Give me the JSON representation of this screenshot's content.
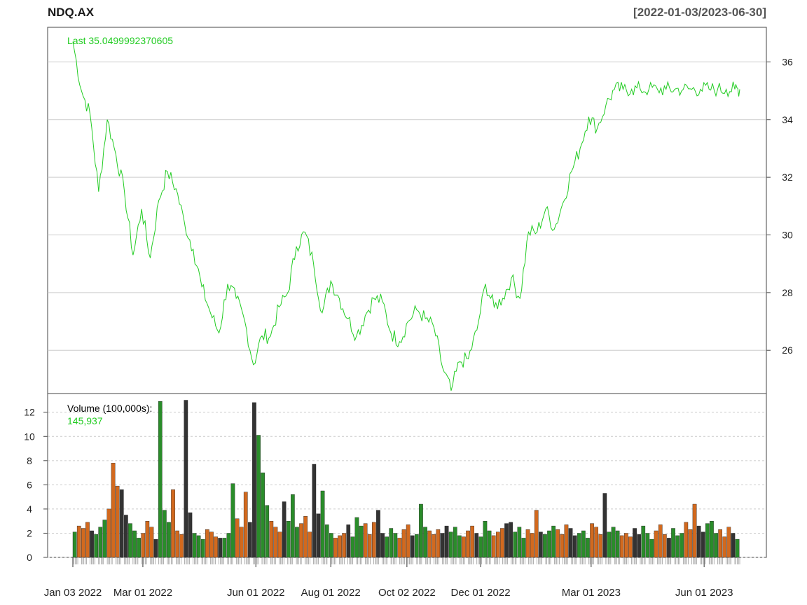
{
  "chart_data": {
    "type": "line",
    "symbol": "NDQ.AX",
    "date_range": "[2022-01-03/2023-06-30]",
    "last_label": "Last 35.0499992370605",
    "price_ylim": [
      24.5,
      37.2
    ],
    "price_ticks": [
      "26",
      "28",
      "30",
      "32",
      "34",
      "36"
    ],
    "x_tick_labels": [
      "Jan 03 2022",
      "Mar 01 2022",
      "Jun 01 2022",
      "Aug 01 2022",
      "Oct 02 2022",
      "Dec 01 2022",
      "Mar 01 2023",
      "Jun 01 2023"
    ],
    "price": {
      "x": [
        "2022-01-03",
        "2022-01-10",
        "2022-01-17",
        "2022-01-24",
        "2022-01-31",
        "2022-02-07",
        "2022-02-14",
        "2022-02-21",
        "2022-02-28",
        "2022-03-07",
        "2022-03-14",
        "2022-03-21",
        "2022-03-28",
        "2022-04-04",
        "2022-04-11",
        "2022-04-18",
        "2022-04-25",
        "2022-05-02",
        "2022-05-09",
        "2022-05-16",
        "2022-05-23",
        "2022-05-30",
        "2022-06-06",
        "2022-06-13",
        "2022-06-20",
        "2022-06-27",
        "2022-07-04",
        "2022-07-11",
        "2022-07-18",
        "2022-07-25",
        "2022-08-01",
        "2022-08-08",
        "2022-08-15",
        "2022-08-22",
        "2022-08-29",
        "2022-09-05",
        "2022-09-12",
        "2022-09-19",
        "2022-09-26",
        "2022-10-03",
        "2022-10-10",
        "2022-10-17",
        "2022-10-24",
        "2022-10-31",
        "2022-11-07",
        "2022-11-14",
        "2022-11-21",
        "2022-11-28",
        "2022-12-05",
        "2022-12-12",
        "2022-12-19",
        "2022-12-26",
        "2023-01-02",
        "2023-01-09",
        "2023-01-16",
        "2023-01-23",
        "2023-01-30",
        "2023-02-06",
        "2023-02-13",
        "2023-02-20",
        "2023-02-27",
        "2023-03-06",
        "2023-03-13",
        "2023-03-20",
        "2023-03-27",
        "2023-04-03",
        "2023-04-10",
        "2023-04-17",
        "2023-04-24",
        "2023-05-01",
        "2023-05-08",
        "2023-05-15",
        "2023-05-22",
        "2023-05-29",
        "2023-06-05",
        "2023-06-12",
        "2023-06-19",
        "2023-06-26",
        "2023-06-30"
      ],
      "values": [
        36.7,
        35.0,
        34.2,
        31.5,
        34.0,
        32.8,
        31.5,
        29.3,
        30.9,
        29.2,
        31.2,
        32.2,
        31.6,
        30.4,
        29.5,
        28.2,
        27.3,
        26.6,
        28.3,
        27.8,
        27.0,
        25.5,
        26.5,
        26.5,
        27.5,
        28.0,
        29.6,
        30.1,
        29.0,
        27.3,
        28.4,
        27.8,
        27.1,
        26.5,
        27.2,
        27.8,
        27.7,
        26.6,
        26.3,
        27.0,
        27.4,
        27.1,
        26.8,
        25.4,
        24.6,
        25.6,
        25.7,
        26.7,
        28.3,
        27.5,
        27.8,
        28.5,
        27.8,
        30.1,
        30.1,
        30.9,
        30.2,
        31.1,
        32.2,
        33.0,
        34.1,
        33.7,
        34.5,
        35.05,
        35.05,
        35.05,
        35.05,
        35.05,
        35.05,
        35.05,
        35.05,
        35.05,
        35.05,
        35.05,
        35.05,
        35.05,
        35.05,
        35.05,
        35.05
      ],
      "color": "#22cc22"
    },
    "volume": {
      "label": "Volume (100,000s):",
      "last_value": "145,937",
      "ylim": [
        0,
        13.2
      ],
      "ticks": [
        "0",
        "2",
        "4",
        "6",
        "8",
        "10",
        "12"
      ],
      "values": [
        2.1,
        2.6,
        2.4,
        2.9,
        2.2,
        1.9,
        2.5,
        3.1,
        4.0,
        7.8,
        5.9,
        5.6,
        3.5,
        2.8,
        2.2,
        1.6,
        2.0,
        3.0,
        2.5,
        1.5,
        12.9,
        3.9,
        2.9,
        5.6,
        2.2,
        1.9,
        13.0,
        3.7,
        2.0,
        1.8,
        1.5,
        2.3,
        2.1,
        1.7,
        1.6,
        1.6,
        2.0,
        6.1,
        3.2,
        2.5,
        5.4,
        2.9,
        12.8,
        10.1,
        7.0,
        4.3,
        3.0,
        2.5,
        2.1,
        4.6,
        3.0,
        5.2,
        2.5,
        2.8,
        3.4,
        2.1,
        7.7,
        3.6,
        5.5,
        2.7,
        2.0,
        1.6,
        1.8,
        2.0,
        2.7,
        1.7,
        3.3,
        2.6,
        2.8,
        1.9,
        2.9,
        3.9,
        2.0,
        1.7,
        2.4,
        2.0,
        1.6,
        2.3,
        2.7,
        1.8,
        1.9,
        4.4,
        2.5,
        2.2,
        1.9,
        2.3,
        2.0,
        2.6,
        2.1,
        2.5,
        1.8,
        1.7,
        2.2,
        2.6,
        2.0,
        1.7,
        3.0,
        2.2,
        1.8,
        2.1,
        2.4,
        2.8,
        2.9,
        2.1,
        2.5,
        1.6,
        2.3,
        2.0,
        3.9,
        2.1,
        1.9,
        2.2,
        2.6,
        2.3,
        1.9,
        2.7,
        2.4,
        1.8,
        2.0,
        2.2,
        1.6,
        2.8,
        2.5,
        1.9,
        5.3,
        2.1,
        2.5,
        2.2,
        1.8,
        2.0,
        1.7,
        2.4,
        1.9,
        2.6,
        2.0,
        1.5,
        2.2,
        2.7,
        1.9,
        1.6,
        2.4,
        1.8,
        2.0,
        2.9,
        2.3,
        4.4,
        2.6,
        2.1,
        2.8,
        3.0,
        2.0,
        2.3,
        1.7,
        2.5,
        2.0,
        1.5
      ]
    },
    "colors": {
      "up": "#2a8c2a",
      "down": "#d2691e",
      "neutral": "#333333",
      "grid": "#cccccc"
    }
  }
}
